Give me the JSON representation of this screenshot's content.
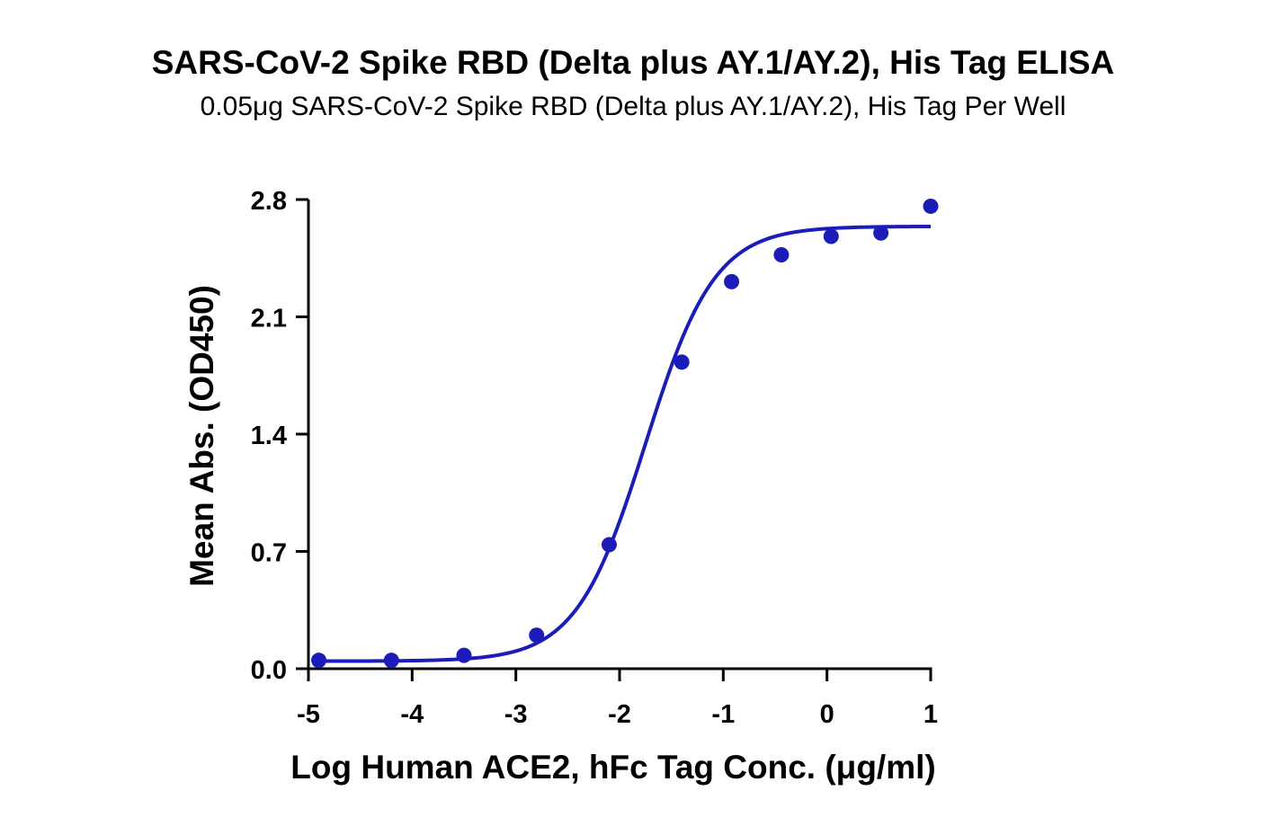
{
  "chart_data": {
    "type": "scatter",
    "title": "SARS-CoV-2 Spike RBD (Delta plus AY.1/AY.2), His Tag ELISA",
    "subtitle": "0.05μg SARS-CoV-2 Spike RBD (Delta plus AY.1/AY.2), His Tag Per Well",
    "xlabel": "Log Human ACE2, hFc Tag Conc. (μg/ml)",
    "ylabel": "Mean Abs. (OD450)",
    "xlim": [
      -5,
      1
    ],
    "ylim": [
      0,
      2.8
    ],
    "x_ticks": [
      "-5",
      "-4",
      "-3",
      "-2",
      "-1",
      "0",
      "1"
    ],
    "x_tick_values": [
      -5,
      -4,
      -3,
      -2,
      -1,
      0,
      1
    ],
    "y_ticks": [
      "0.0",
      "0.7",
      "1.4",
      "2.1",
      "2.8"
    ],
    "y_tick_values": [
      0,
      0.7,
      1.4,
      2.1,
      2.8
    ],
    "grid": false,
    "series": [
      {
        "x": [
          -4.9,
          -4.2,
          -3.5,
          -2.8,
          -2.1,
          -1.4,
          -0.92,
          -0.44,
          0.04,
          0.52,
          1.0
        ],
        "y": [
          0.05,
          0.05,
          0.08,
          0.2,
          0.74,
          1.83,
          2.31,
          2.47,
          2.58,
          2.6,
          2.76
        ],
        "color": "#1c1cb8"
      }
    ],
    "fit_curve": {
      "model": "4PL",
      "bottom": 0.045,
      "top": 2.64,
      "logEC50": -1.75,
      "hill": 1.3,
      "color": "#1c1cb8"
    }
  }
}
